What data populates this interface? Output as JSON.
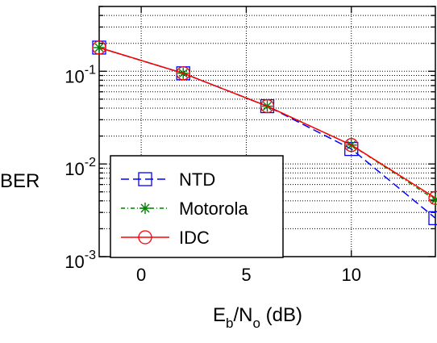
{
  "chart_data": {
    "type": "line",
    "xlabel": {
      "main": "E",
      "sub1": "b",
      "mid": "/N",
      "sub2": "o",
      "tail": " (dB)"
    },
    "ylabel": "BER",
    "xlim": [
      -2,
      14
    ],
    "ylim": [
      0.001,
      0.5
    ],
    "y_scale": "log",
    "grid": true,
    "legend_position": "bottom-left",
    "x_ticks": [
      0,
      5,
      10
    ],
    "y_ticks": [
      {
        "value": 0.1,
        "base": "10",
        "exp": "-1"
      },
      {
        "value": 0.01,
        "base": "10",
        "exp": "-2"
      },
      {
        "value": 0.001,
        "base": "10",
        "exp": "-3"
      }
    ],
    "series": [
      {
        "name": "NTD",
        "color": "#0000ff",
        "dash": "10,5",
        "marker": "square",
        "x": [
          -2,
          2,
          6,
          10,
          14
        ],
        "y": [
          0.18,
          0.095,
          0.042,
          0.0145,
          0.0026
        ]
      },
      {
        "name": "Motorola",
        "color": "#008000",
        "dash": "5,3,1,3",
        "marker": "star",
        "x": [
          -2,
          2,
          6,
          10,
          14
        ],
        "y": [
          0.18,
          0.095,
          0.042,
          0.016,
          0.0041
        ]
      },
      {
        "name": "IDC",
        "color": "#ff0000",
        "dash": "",
        "marker": "circle",
        "x": [
          -2,
          2,
          6,
          10,
          14
        ],
        "y": [
          0.18,
          0.095,
          0.042,
          0.016,
          0.0043
        ]
      }
    ]
  }
}
